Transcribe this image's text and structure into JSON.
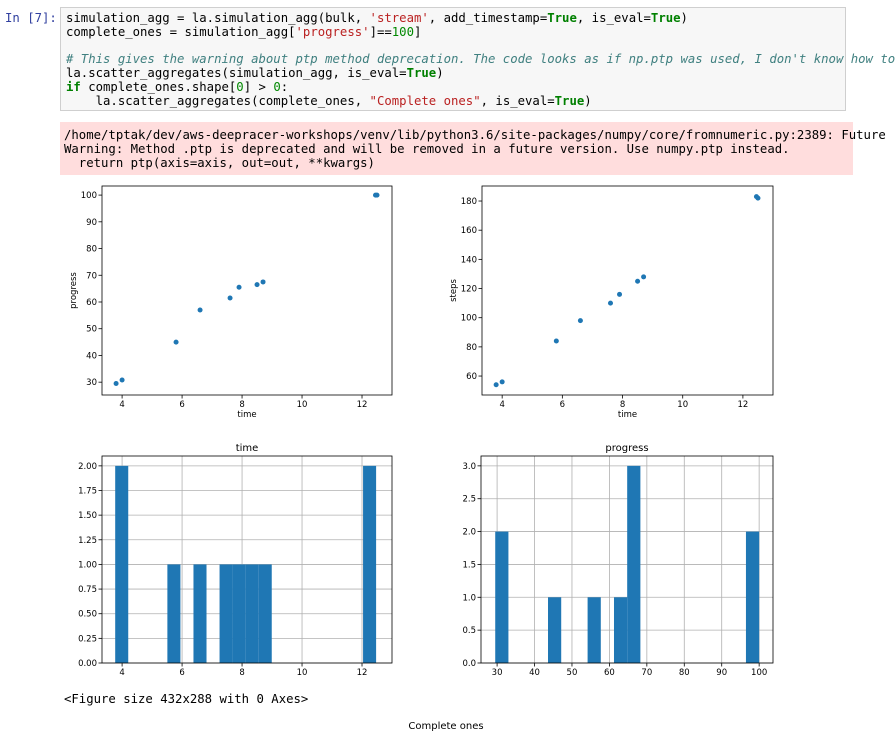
{
  "cell": {
    "prompt": "In [7]:",
    "code": [
      [
        {
          "text": "simulation_agg = la.simulation_agg(bulk, "
        },
        {
          "text": "'stream'",
          "color": "#ba2121"
        },
        {
          "text": ", add_timestamp="
        },
        {
          "text": "True",
          "color": "#008000",
          "bold": true
        },
        {
          "text": ", is_eval="
        },
        {
          "text": "True",
          "color": "#008000",
          "bold": true
        },
        {
          "text": ")"
        }
      ],
      [
        {
          "text": "complete_ones = simulation_agg["
        },
        {
          "text": "'progress'",
          "color": "#ba2121"
        },
        {
          "text": "]=="
        },
        {
          "text": "100",
          "color": "#008800"
        },
        {
          "text": "]"
        }
      ],
      [],
      [
        {
          "text": "# This gives the warning about ptp method deprecation. The code looks as if np.ptp was used, I don't know how to",
          "color": "#408080",
          "italic": true
        }
      ],
      [
        {
          "text": "la.scatter_aggregates(simulation_agg, is_eval="
        },
        {
          "text": "True",
          "color": "#008000",
          "bold": true
        },
        {
          "text": ")"
        }
      ],
      [
        {
          "text": "if",
          "color": "#008000",
          "bold": true
        },
        {
          "text": " complete_ones.shape["
        },
        {
          "text": "0",
          "color": "#008800"
        },
        {
          "text": "] > "
        },
        {
          "text": "0",
          "color": "#008800"
        },
        {
          "text": ":"
        }
      ],
      [
        {
          "text": "    la.scatter_aggregates(complete_ones, "
        },
        {
          "text": "\"Complete ones\"",
          "color": "#ba2121"
        },
        {
          "text": ", is_eval="
        },
        {
          "text": "True",
          "color": "#008000",
          "bold": true
        },
        {
          "text": ")"
        }
      ]
    ],
    "stderr": [
      "/home/tptak/dev/aws-deepracer-workshops/venv/lib/python3.6/site-packages/numpy/core/fromnumeric.py:2389: Future",
      "Warning: Method .ptp is deprecated and will be removed in a future version. Use numpy.ptp instead.",
      "  return ptp(axis=axis, out=out, **kwargs)"
    ]
  },
  "chart_data": [
    {
      "type": "scatter",
      "xlabel": "time",
      "ylabel": "progress",
      "color": "#1f77b4",
      "grid": false,
      "x": [
        3.8,
        4.0,
        5.8,
        6.6,
        7.6,
        7.9,
        8.5,
        8.7,
        12.45,
        12.5
      ],
      "values": [
        29.5,
        30.8,
        45,
        57,
        61.5,
        65.5,
        66.5,
        67.5,
        100,
        100
      ],
      "xlim": [
        3.33,
        13.0
      ],
      "xticks": [
        4,
        6,
        8,
        10,
        12
      ],
      "ylim": [
        25.2,
        103.4
      ],
      "yticks": [
        30,
        40,
        50,
        60,
        70,
        80,
        90,
        100
      ]
    },
    {
      "type": "scatter",
      "xlabel": "time",
      "ylabel": "steps",
      "color": "#1f77b4",
      "grid": false,
      "x": [
        3.8,
        4.0,
        5.8,
        6.6,
        7.6,
        7.9,
        8.5,
        8.7,
        12.45,
        12.5
      ],
      "values": [
        54,
        56,
        84,
        98,
        110,
        116,
        125,
        128,
        183,
        182
      ],
      "xlim": [
        3.33,
        13.0
      ],
      "xticks": [
        4,
        6,
        8,
        10,
        12
      ],
      "ylim": [
        47.0,
        190.3
      ],
      "yticks": [
        60,
        80,
        100,
        120,
        140,
        160,
        180
      ]
    },
    {
      "type": "histogram",
      "title": "time",
      "color": "#1f77b4",
      "grid": true,
      "bins": [
        3.77,
        4.205,
        4.64,
        5.075,
        5.51,
        5.945,
        6.38,
        6.815,
        7.25,
        7.685,
        8.12,
        8.555,
        8.99,
        9.425,
        9.86,
        10.295,
        10.73,
        11.165,
        11.6,
        12.035,
        12.47
      ],
      "values": [
        2,
        0,
        0,
        0,
        1,
        0,
        1,
        0,
        1,
        1,
        1,
        1,
        0,
        0,
        0,
        0,
        0,
        0,
        0,
        2
      ],
      "xlim": [
        3.33,
        13.0
      ],
      "xticks": [
        4,
        6,
        8,
        10,
        12
      ],
      "ylim": [
        0,
        2.1
      ],
      "yticks": [
        {
          "value": 0,
          "label": "0.00"
        },
        {
          "value": 0.25,
          "label": "0.25"
        },
        {
          "value": 0.5,
          "label": "0.50"
        },
        {
          "value": 0.75,
          "label": "0.75"
        },
        {
          "value": 1,
          "label": "1.00"
        },
        {
          "value": 1.25,
          "label": "1.25"
        },
        {
          "value": 1.5,
          "label": "1.50"
        },
        {
          "value": 1.75,
          "label": "1.75"
        },
        {
          "value": 2,
          "label": "2.00"
        }
      ]
    },
    {
      "type": "histogram",
      "title": "progress",
      "color": "#1f77b4",
      "grid": true,
      "bins": [
        29.5,
        33.025,
        36.55,
        40.075,
        43.6,
        47.125,
        50.65,
        54.175,
        57.7,
        61.225,
        64.75,
        68.275,
        71.8,
        75.325,
        78.85,
        82.375,
        85.9,
        89.425,
        92.95,
        96.475,
        100
      ],
      "values": [
        2,
        0,
        0,
        0,
        1,
        0,
        0,
        1,
        0,
        1,
        3,
        0,
        0,
        0,
        0,
        0,
        0,
        0,
        0,
        2
      ],
      "xlim": [
        25.7,
        103.7
      ],
      "xticks": [
        30,
        40,
        50,
        60,
        70,
        80,
        90,
        100
      ],
      "ylim": [
        0,
        3.15
      ],
      "yticks": [
        {
          "value": 0,
          "label": "0.0"
        },
        {
          "value": 0.5,
          "label": "0.5"
        },
        {
          "value": 1,
          "label": "1.0"
        },
        {
          "value": 1.5,
          "label": "1.5"
        },
        {
          "value": 2,
          "label": "2.0"
        },
        {
          "value": 2.5,
          "label": "2.5"
        },
        {
          "value": 3,
          "label": "3.0"
        }
      ]
    }
  ],
  "figure_text": "<Figure size 432x288 with 0 Axes>",
  "caption": "Complete ones"
}
